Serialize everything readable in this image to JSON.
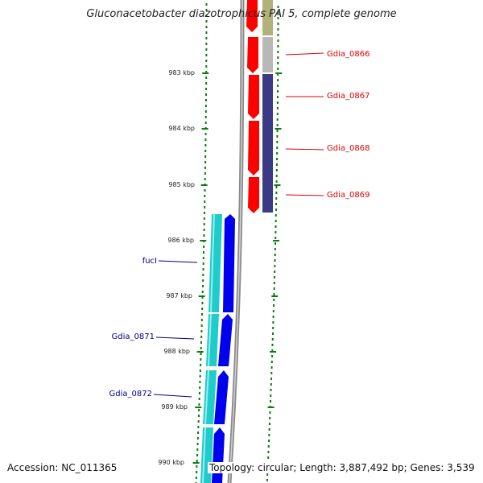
{
  "title": "Gluconacetobacter diazotrophicus PAI 5, complete genome",
  "accession": "Accession: NC_011365",
  "topology": "Topology: circular; Length: 3,887,492 bp; Genes: 3,539",
  "ruler": {
    "ticks": [
      "983 kbp",
      "984 kbp",
      "985 kbp",
      "986 kbp",
      "987 kbp",
      "988 kbp",
      "989 kbp",
      "990 kbp"
    ]
  },
  "genes_forward": [
    {
      "label": "Gdia_0866",
      "color": "#dd0000"
    },
    {
      "label": "Gdia_0867",
      "color": "#dd0000"
    },
    {
      "label": "Gdia_0868",
      "color": "#dd0000"
    },
    {
      "label": "Gdia_0869",
      "color": "#dd0000"
    }
  ],
  "genes_reverse": [
    {
      "label": "fucI",
      "color": "#00008b"
    },
    {
      "label": "Gdia_0871",
      "color": "#00008b"
    },
    {
      "label": "Gdia_0872",
      "color": "#00008b"
    }
  ],
  "colors": {
    "forward_gene": "#ff0000",
    "cog_olive": "#b4b07a",
    "cog_gray": "#b8b8b8",
    "cog_navy": "#3b3b85",
    "reverse_gene": "#0000ee",
    "cog_cyan": "#1ecccc",
    "backbone": "#8a8a8a",
    "tick": "#0a7d0a"
  }
}
